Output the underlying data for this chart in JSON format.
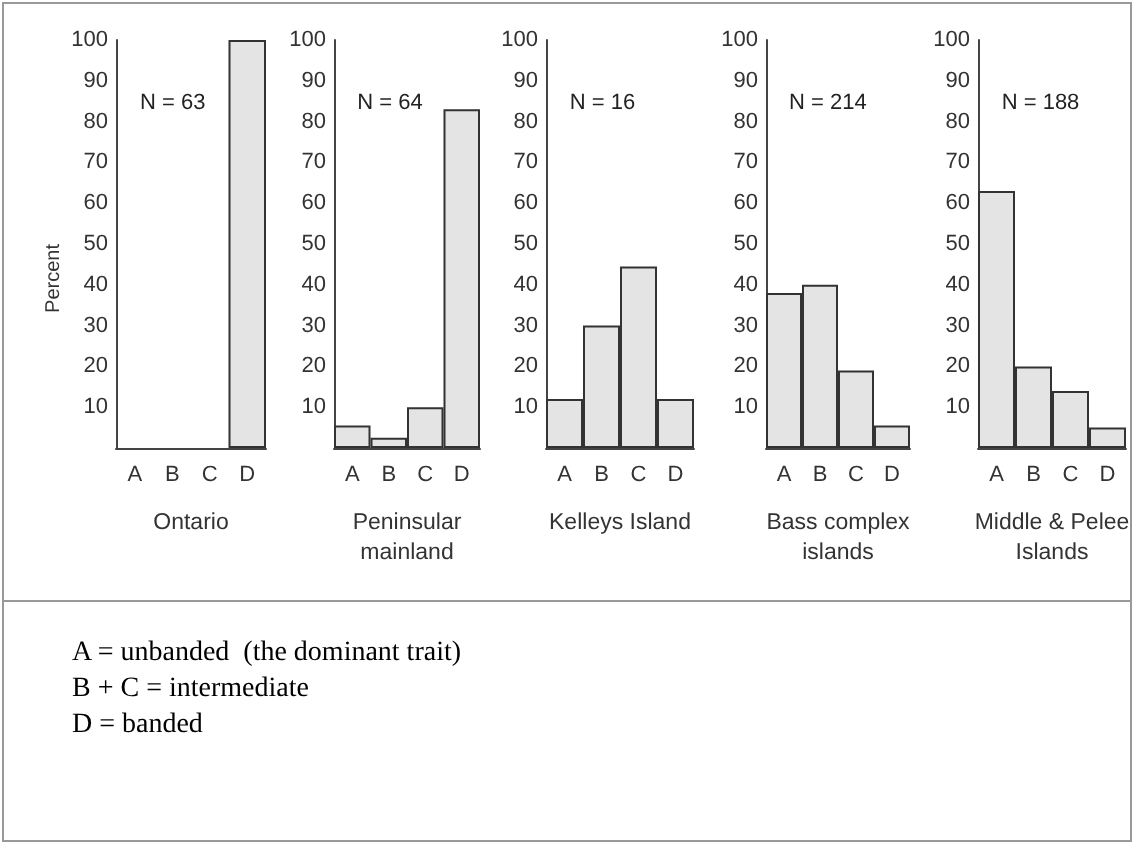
{
  "chart_data": [
    {
      "type": "bar",
      "ylabel": "Percent",
      "xlabel": "Ontario",
      "categories": [
        "A",
        "B",
        "C",
        "D"
      ],
      "values": [
        0,
        0,
        0,
        100
      ],
      "color": "#e4e4e4",
      "ylim": [
        0,
        100
      ],
      "yticks": [
        10,
        20,
        30,
        40,
        50,
        60,
        70,
        80,
        90,
        100
      ],
      "grid": false,
      "annotations": [
        "N = 63"
      ]
    },
    {
      "type": "bar",
      "xlabel": "Peninsular mainland",
      "categories": [
        "A",
        "B",
        "C",
        "D"
      ],
      "values": [
        5.5,
        2.5,
        10,
        83
      ],
      "color": "#e4e4e4",
      "ylim": [
        0,
        100
      ],
      "yticks": [
        10,
        20,
        30,
        40,
        50,
        60,
        70,
        80,
        90,
        100
      ],
      "grid": false,
      "annotations": [
        "N = 64"
      ]
    },
    {
      "type": "bar",
      "xlabel": "Kelleys Island",
      "categories": [
        "A",
        "B",
        "C",
        "D"
      ],
      "values": [
        12,
        30,
        44.5,
        12
      ],
      "color": "#e4e4e4",
      "ylim": [
        0,
        100
      ],
      "yticks": [
        10,
        20,
        30,
        40,
        50,
        60,
        70,
        80,
        90,
        100
      ],
      "grid": false,
      "annotations": [
        "N = 16"
      ]
    },
    {
      "type": "bar",
      "xlabel": "Bass complex islands",
      "categories": [
        "A",
        "B",
        "C",
        "D"
      ],
      "values": [
        38,
        40,
        19,
        5.5
      ],
      "color": "#e4e4e4",
      "ylim": [
        0,
        100
      ],
      "yticks": [
        10,
        20,
        30,
        40,
        50,
        60,
        70,
        80,
        90,
        100
      ],
      "grid": false,
      "annotations": [
        "N = 214"
      ]
    },
    {
      "type": "bar",
      "xlabel": "Middle & Pelee Islands",
      "categories": [
        "A",
        "B",
        "C",
        "D"
      ],
      "values": [
        63,
        20,
        14,
        5
      ],
      "color": "#e4e4e4",
      "ylim": [
        0,
        100
      ],
      "yticks": [
        10,
        20,
        30,
        40,
        50,
        60,
        70,
        80,
        90,
        100
      ],
      "grid": false,
      "annotations": [
        "N = 188"
      ]
    },
    {
      "type": "other",
      "annotations": [
        "A = unbanded  (the dominant trait)",
        "B + C = intermediate",
        "D = banded"
      ]
    }
  ]
}
